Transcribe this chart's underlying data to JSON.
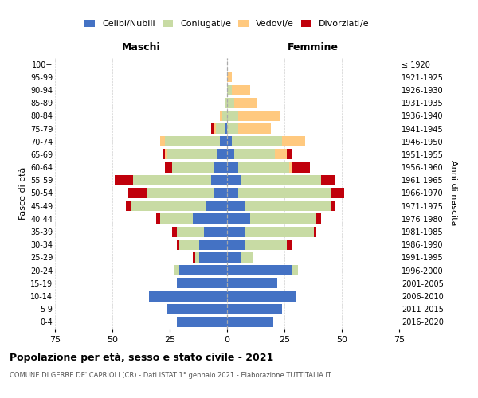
{
  "age_groups": [
    "100+",
    "95-99",
    "90-94",
    "85-89",
    "80-84",
    "75-79",
    "70-74",
    "65-69",
    "60-64",
    "55-59",
    "50-54",
    "45-49",
    "40-44",
    "35-39",
    "30-34",
    "25-29",
    "20-24",
    "15-19",
    "10-14",
    "5-9",
    "0-4"
  ],
  "birth_years": [
    "≤ 1920",
    "1921-1925",
    "1926-1930",
    "1931-1935",
    "1936-1940",
    "1941-1945",
    "1946-1950",
    "1951-1955",
    "1956-1960",
    "1961-1965",
    "1966-1970",
    "1971-1975",
    "1976-1980",
    "1981-1985",
    "1986-1990",
    "1991-1995",
    "1996-2000",
    "2001-2005",
    "2006-2010",
    "2011-2015",
    "2016-2020"
  ],
  "colors": {
    "celibe": "#4472C4",
    "coniugato": "#c8dba4",
    "vedovo": "#ffc97f",
    "divorziato": "#c0000b"
  },
  "maschi": {
    "celibe": [
      0,
      0,
      0,
      0,
      0,
      1,
      3,
      4,
      6,
      7,
      6,
      9,
      15,
      10,
      12,
      12,
      21,
      22,
      34,
      26,
      22
    ],
    "coniugato": [
      0,
      0,
      0,
      1,
      2,
      4,
      24,
      22,
      18,
      34,
      29,
      33,
      14,
      12,
      9,
      2,
      2,
      0,
      0,
      0,
      0
    ],
    "vedovo": [
      0,
      0,
      0,
      0,
      1,
      1,
      2,
      1,
      0,
      0,
      0,
      0,
      0,
      0,
      0,
      0,
      0,
      0,
      0,
      0,
      0
    ],
    "divorziato": [
      0,
      0,
      0,
      0,
      0,
      1,
      0,
      1,
      3,
      8,
      8,
      2,
      2,
      2,
      1,
      1,
      0,
      0,
      0,
      0,
      0
    ]
  },
  "femmine": {
    "nubile": [
      0,
      0,
      0,
      0,
      0,
      0,
      2,
      3,
      5,
      6,
      5,
      8,
      10,
      8,
      8,
      6,
      28,
      22,
      30,
      24,
      20
    ],
    "coniugata": [
      0,
      0,
      2,
      3,
      5,
      5,
      22,
      18,
      22,
      35,
      40,
      37,
      29,
      30,
      18,
      5,
      3,
      0,
      0,
      0,
      0
    ],
    "vedova": [
      0,
      2,
      8,
      10,
      18,
      14,
      10,
      5,
      1,
      0,
      0,
      0,
      0,
      0,
      0,
      0,
      0,
      0,
      0,
      0,
      0
    ],
    "divorziata": [
      0,
      0,
      0,
      0,
      0,
      0,
      0,
      2,
      8,
      6,
      6,
      2,
      2,
      1,
      2,
      0,
      0,
      0,
      0,
      0,
      0
    ]
  },
  "xlim": 75,
  "title": "Popolazione per età, sesso e stato civile - 2021",
  "subtitle": "COMUNE DI GERRE DE' CAPRIOLI (CR) - Dati ISTAT 1° gennaio 2021 - Elaborazione TUTTITALIA.IT",
  "ylabel": "Fasce di età",
  "ylabel_right": "Anni di nascita",
  "label_maschi": "Maschi",
  "label_femmine": "Femmine",
  "legend_labels": [
    "Celibi/Nubili",
    "Coniugati/e",
    "Vedovi/e",
    "Divorziati/e"
  ]
}
